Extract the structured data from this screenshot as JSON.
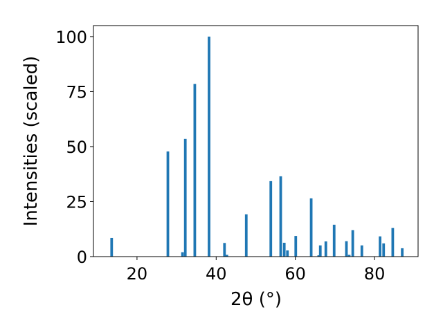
{
  "chart_data": {
    "type": "bar",
    "xlabel": "2θ (°)",
    "ylabel": "Intensities (scaled)",
    "xlim": [
      9,
      91
    ],
    "ylim": [
      0,
      105
    ],
    "xticks": [
      20,
      40,
      60,
      80
    ],
    "yticks": [
      0,
      25,
      50,
      75,
      100
    ],
    "bar_color": "#1f77b4",
    "grid": false,
    "points": [
      {
        "x": 13.6,
        "y": 8.5
      },
      {
        "x": 27.8,
        "y": 47.8
      },
      {
        "x": 31.5,
        "y": 2.0
      },
      {
        "x": 32.2,
        "y": 53.5
      },
      {
        "x": 34.6,
        "y": 78.5
      },
      {
        "x": 38.2,
        "y": 100.0
      },
      {
        "x": 42.1,
        "y": 6.2
      },
      {
        "x": 42.7,
        "y": 0.8
      },
      {
        "x": 47.6,
        "y": 19.2
      },
      {
        "x": 53.8,
        "y": 34.3
      },
      {
        "x": 56.3,
        "y": 36.5
      },
      {
        "x": 57.2,
        "y": 6.3
      },
      {
        "x": 58.0,
        "y": 2.8
      },
      {
        "x": 60.1,
        "y": 9.4
      },
      {
        "x": 64.0,
        "y": 26.5
      },
      {
        "x": 65.9,
        "y": 0.6
      },
      {
        "x": 66.3,
        "y": 5.1
      },
      {
        "x": 67.7,
        "y": 6.9
      },
      {
        "x": 69.8,
        "y": 14.5
      },
      {
        "x": 72.9,
        "y": 7.0
      },
      {
        "x": 73.6,
        "y": 0.8
      },
      {
        "x": 74.5,
        "y": 12.0
      },
      {
        "x": 76.8,
        "y": 5.1
      },
      {
        "x": 81.4,
        "y": 9.2
      },
      {
        "x": 82.3,
        "y": 6.0
      },
      {
        "x": 84.6,
        "y": 13.0
      },
      {
        "x": 87.0,
        "y": 3.8
      }
    ]
  }
}
